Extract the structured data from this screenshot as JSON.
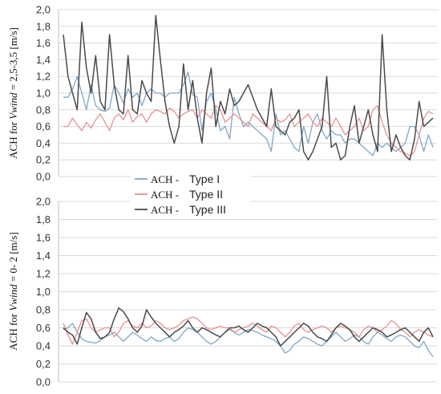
{
  "chart_data": [
    {
      "type": "line",
      "ylabel": "ACH for Vwind = 2,5-3,5 [m/s]",
      "ylim": [
        0,
        2
      ],
      "yticks": [
        "0,0",
        "0,2",
        "0,4",
        "0,6",
        "0,8",
        "1,0",
        "1,2",
        "1,4",
        "1,6",
        "1,8",
        "2,0"
      ],
      "grid": true,
      "series": [
        {
          "name": "ACH - Type I",
          "color": "#7fa7c9",
          "values": [
            0.95,
            0.95,
            1.05,
            1.2,
            1.0,
            0.8,
            1.1,
            0.85,
            0.8,
            0.78,
            0.82,
            1.1,
            1.0,
            0.88,
            1.05,
            0.95,
            1.0,
            0.85,
            1.0,
            1.05,
            1.0,
            1.0,
            0.95,
            1.0,
            1.0,
            1.0,
            1.1,
            1.25,
            0.98,
            0.95,
            0.55,
            0.9,
            1.0,
            0.8,
            0.55,
            0.6,
            0.45,
            0.95,
            0.75,
            0.6,
            0.65,
            0.6,
            0.55,
            0.5,
            0.45,
            0.3,
            0.75,
            0.5,
            0.55,
            0.45,
            0.35,
            0.3,
            0.6,
            0.4,
            0.65,
            0.75,
            0.55,
            0.45,
            0.55,
            0.5,
            0.5,
            0.4,
            0.45,
            0.45,
            0.4,
            0.35,
            0.3,
            0.25,
            0.4,
            0.35,
            0.4,
            0.35,
            0.3,
            0.35,
            0.4,
            0.6,
            0.6,
            0.5,
            0.3,
            0.5,
            0.35
          ]
        },
        {
          "name": "ACH - Type II",
          "color": "#e8918f",
          "values": [
            0.6,
            0.6,
            0.7,
            0.62,
            0.55,
            0.65,
            0.58,
            0.68,
            0.75,
            0.65,
            0.55,
            0.7,
            0.75,
            0.68,
            0.8,
            0.65,
            0.72,
            0.75,
            0.65,
            0.75,
            0.8,
            0.78,
            0.75,
            0.82,
            0.78,
            0.7,
            0.75,
            0.78,
            0.8,
            0.7,
            0.8,
            0.75,
            0.7,
            0.85,
            0.8,
            0.65,
            0.7,
            0.75,
            0.7,
            0.65,
            0.6,
            0.75,
            0.7,
            0.65,
            0.6,
            0.55,
            0.7,
            0.65,
            0.68,
            0.75,
            0.6,
            0.65,
            0.7,
            0.75,
            0.65,
            0.6,
            0.7,
            0.65,
            0.6,
            0.7,
            0.6,
            0.5,
            0.55,
            0.6,
            0.7,
            0.55,
            0.6,
            0.8,
            0.85,
            0.65,
            0.5,
            0.4,
            0.35,
            0.3,
            0.28,
            0.25,
            0.3,
            0.5,
            0.7,
            0.78,
            0.75
          ]
        },
        {
          "name": "ACH - Type III",
          "color": "#4a4a4a",
          "values": [
            1.7,
            1.2,
            1.0,
            0.8,
            1.85,
            1.3,
            1.0,
            1.45,
            0.9,
            0.8,
            1.7,
            1.1,
            0.8,
            0.75,
            1.45,
            0.8,
            0.75,
            1.15,
            1.0,
            0.9,
            1.93,
            1.4,
            0.9,
            0.6,
            0.4,
            0.6,
            1.35,
            0.8,
            1.15,
            0.7,
            0.4,
            1.0,
            1.3,
            0.6,
            0.9,
            0.75,
            1.05,
            0.85,
            0.9,
            1.0,
            1.1,
            0.95,
            0.8,
            0.7,
            0.6,
            1.05,
            0.6,
            0.55,
            0.5,
            0.65,
            0.7,
            0.8,
            0.3,
            0.2,
            0.3,
            0.45,
            0.6,
            1.2,
            0.35,
            0.4,
            0.2,
            0.25,
            0.6,
            0.85,
            0.4,
            0.6,
            0.8,
            0.5,
            0.3,
            1.7,
            0.8,
            0.3,
            0.5,
            0.35,
            0.25,
            0.2,
            0.45,
            0.9,
            0.6,
            0.65,
            0.7
          ]
        }
      ]
    },
    {
      "type": "line",
      "ylabel": "ACH for Vwind = 0- 2 [m/s]",
      "ylim": [
        0,
        2
      ],
      "yticks": [
        "0,0",
        "0,2",
        "0,4",
        "0,6",
        "0,8",
        "1,0",
        "1,2",
        "1,4",
        "1,6",
        "1,8",
        "2,0"
      ],
      "grid": true,
      "series": [
        {
          "name": "ACH - Type I",
          "color": "#7fa7c9",
          "values": [
            0.58,
            0.6,
            0.65,
            0.55,
            0.48,
            0.45,
            0.44,
            0.43,
            0.46,
            0.5,
            0.52,
            0.55,
            0.5,
            0.45,
            0.5,
            0.55,
            0.52,
            0.48,
            0.45,
            0.5,
            0.46,
            0.45,
            0.48,
            0.5,
            0.45,
            0.48,
            0.55,
            0.6,
            0.58,
            0.55,
            0.5,
            0.45,
            0.42,
            0.45,
            0.5,
            0.55,
            0.58,
            0.55,
            0.52,
            0.55,
            0.58,
            0.57,
            0.55,
            0.52,
            0.5,
            0.48,
            0.45,
            0.4,
            0.32,
            0.35,
            0.42,
            0.45,
            0.5,
            0.48,
            0.45,
            0.42,
            0.4,
            0.45,
            0.5,
            0.55,
            0.5,
            0.45,
            0.48,
            0.52,
            0.5,
            0.45,
            0.42,
            0.5,
            0.55,
            0.52,
            0.48,
            0.45,
            0.5,
            0.52,
            0.5,
            0.45,
            0.4,
            0.38,
            0.45,
            0.35,
            0.28
          ]
        },
        {
          "name": "ACH - Type II",
          "color": "#e8918f",
          "values": [
            0.65,
            0.52,
            0.42,
            0.55,
            0.68,
            0.7,
            0.6,
            0.55,
            0.58,
            0.6,
            0.6,
            0.5,
            0.55,
            0.65,
            0.68,
            0.62,
            0.6,
            0.65,
            0.6,
            0.62,
            0.68,
            0.65,
            0.6,
            0.58,
            0.6,
            0.63,
            0.68,
            0.7,
            0.72,
            0.7,
            0.65,
            0.6,
            0.58,
            0.6,
            0.62,
            0.6,
            0.6,
            0.55,
            0.58,
            0.6,
            0.62,
            0.65,
            0.62,
            0.58,
            0.55,
            0.62,
            0.6,
            0.55,
            0.5,
            0.55,
            0.62,
            0.65,
            0.58,
            0.55,
            0.58,
            0.6,
            0.62,
            0.6,
            0.55,
            0.6,
            0.62,
            0.6,
            0.58,
            0.55,
            0.5,
            0.58,
            0.62,
            0.6,
            0.55,
            0.58,
            0.62,
            0.68,
            0.65,
            0.58,
            0.55,
            0.5,
            0.55,
            0.58,
            0.55,
            0.52,
            0.5
          ]
        },
        {
          "name": "ACH - Type III",
          "color": "#4a4a4a",
          "values": [
            0.6,
            0.55,
            0.52,
            0.42,
            0.6,
            0.77,
            0.7,
            0.55,
            0.48,
            0.5,
            0.55,
            0.7,
            0.82,
            0.78,
            0.7,
            0.6,
            0.55,
            0.62,
            0.8,
            0.72,
            0.65,
            0.6,
            0.55,
            0.5,
            0.55,
            0.58,
            0.62,
            0.68,
            0.6,
            0.55,
            0.6,
            0.58,
            0.55,
            0.52,
            0.5,
            0.55,
            0.6,
            0.6,
            0.62,
            0.58,
            0.55,
            0.6,
            0.65,
            0.62,
            0.6,
            0.55,
            0.5,
            0.4,
            0.45,
            0.5,
            0.55,
            0.6,
            0.65,
            0.62,
            0.55,
            0.5,
            0.48,
            0.45,
            0.52,
            0.6,
            0.65,
            0.62,
            0.58,
            0.5,
            0.45,
            0.5,
            0.55,
            0.6,
            0.58,
            0.55,
            0.5,
            0.52,
            0.55,
            0.58,
            0.6,
            0.55,
            0.5,
            0.45,
            0.55,
            0.6,
            0.5
          ]
        }
      ]
    }
  ],
  "legend": {
    "placement": "between-panels",
    "entries": [
      {
        "prefix": "ACH -",
        "label": "Type I",
        "color": "#7fa7c9"
      },
      {
        "prefix": "ACH -",
        "label": "Type II",
        "color": "#e8918f"
      },
      {
        "prefix": "ACH -",
        "label": "Type III",
        "color": "#4a4a4a"
      }
    ]
  }
}
